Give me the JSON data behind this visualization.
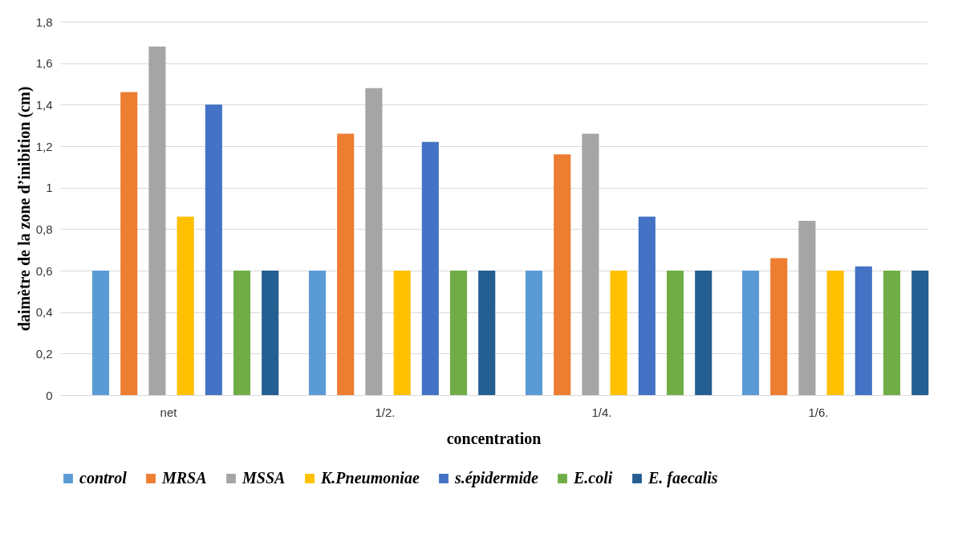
{
  "chart_data": {
    "type": "bar",
    "xlabel": "concentration",
    "ylabel": "daimètre de la zone d’inibition (cm)",
    "categories": [
      "net",
      "1/2.",
      "1/4.",
      "1/6."
    ],
    "series": [
      {
        "name": "control",
        "color": "#5b9bd5",
        "values": [
          0.6,
          0.6,
          0.6,
          0.6
        ]
      },
      {
        "name": "MRSA",
        "color": "#ed7d31",
        "values": [
          1.46,
          1.26,
          1.16,
          0.66
        ]
      },
      {
        "name": "MSSA",
        "color": "#a5a5a5",
        "values": [
          1.68,
          1.48,
          1.26,
          0.84
        ]
      },
      {
        "name": "K.Pneumoniae",
        "color": "#ffc000",
        "values": [
          0.86,
          0.6,
          0.6,
          0.6
        ]
      },
      {
        "name": "s.épidermide",
        "color": "#4472c4",
        "values": [
          1.4,
          1.22,
          0.86,
          0.62
        ]
      },
      {
        "name": "E.coli",
        "color": "#70ad47",
        "values": [
          0.6,
          0.6,
          0.6,
          0.6
        ]
      },
      {
        "name": "E. faecalis",
        "color": "#255e91",
        "values": [
          0.6,
          0.6,
          0.6,
          0.6
        ]
      }
    ],
    "ylim": [
      0,
      1.8
    ],
    "yticks": [
      0,
      {
        "value": 0.2,
        "label": "0,2"
      },
      {
        "value": 0.4,
        "label": "0,4"
      },
      {
        "value": 0.6,
        "label": "0,6"
      },
      {
        "value": 0.8,
        "label": "0,8"
      },
      1,
      {
        "value": 1.2,
        "label": "1,2"
      },
      {
        "value": 1.4,
        "label": "1,4"
      },
      {
        "value": 1.6,
        "label": "1,6"
      },
      {
        "value": 1.8,
        "label": "1,8"
      }
    ],
    "grid": "y",
    "legend": "bottom"
  }
}
